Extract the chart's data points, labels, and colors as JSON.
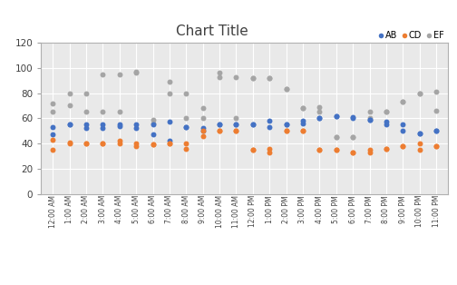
{
  "title": "Chart Title",
  "legend_labels": [
    "AB",
    "CD",
    "EF"
  ],
  "colors": {
    "AB": "#4472C4",
    "CD": "#ED7D31",
    "EF": "#A5A5A5"
  },
  "x_labels": [
    "12:00 AM",
    "1:00 AM",
    "2:00 AM",
    "3:00 AM",
    "4:00 AM",
    "5:00 AM",
    "6:00 AM",
    "7:00 AM",
    "8:00 AM",
    "9:00 AM",
    "10:00 AM",
    "11:00 AM",
    "12:00 PM",
    "1:00 PM",
    "2:00 PM",
    "3:00 PM",
    "4:00 PM",
    "5:00 PM",
    "6:00 PM",
    "7:00 PM",
    "8:00 PM",
    "9:00 PM",
    "10:00 PM",
    "11:00 PM"
  ],
  "AB_data": {
    "0": [
      53,
      47
    ],
    "1": [
      55,
      55
    ],
    "2": [
      55,
      52
    ],
    "3": [
      52,
      55
    ],
    "4": [
      55,
      54
    ],
    "5": [
      55,
      52
    ],
    "6": [
      55,
      47
    ],
    "7": [
      42,
      57
    ],
    "8": [
      53,
      53
    ],
    "9": [
      50,
      52
    ],
    "10": [
      55,
      55
    ],
    "11": [
      55,
      55
    ],
    "12": [
      55,
      55
    ],
    "13": [
      53,
      58
    ],
    "14": [
      55,
      55
    ],
    "15": [
      58,
      56
    ],
    "16": [
      60,
      60
    ],
    "17": [
      62,
      62
    ],
    "18": [
      61,
      60
    ],
    "19": [
      59,
      59
    ],
    "20": [
      57,
      55
    ],
    "21": [
      50,
      55
    ],
    "22": [
      48,
      48
    ],
    "23": [
      50,
      50
    ]
  },
  "CD_data": {
    "0": [
      43,
      35
    ],
    "1": [
      41,
      40
    ],
    "2": [
      40,
      40
    ],
    "3": [
      40,
      40
    ],
    "4": [
      42,
      40
    ],
    "5": [
      40,
      38
    ],
    "6": [
      39,
      39
    ],
    "7": [
      40,
      40
    ],
    "8": [
      36,
      40
    ],
    "9": [
      50,
      46
    ],
    "10": [
      50,
      50
    ],
    "11": [
      50,
      50
    ],
    "12": [
      35,
      35
    ],
    "13": [
      33,
      36
    ],
    "14": [
      50,
      50
    ],
    "15": [
      50,
      50
    ],
    "16": [
      35,
      35
    ],
    "17": [
      35,
      35
    ],
    "18": [
      33,
      33
    ],
    "19": [
      33,
      35
    ],
    "20": [
      36,
      36
    ],
    "21": [
      38,
      38
    ],
    "22": [
      40,
      35
    ],
    "23": [
      38,
      38
    ]
  },
  "EF_data": {
    "0": [
      65,
      72
    ],
    "1": [
      80,
      70
    ],
    "2": [
      80,
      65
    ],
    "3": [
      95,
      65
    ],
    "4": [
      95,
      65
    ],
    "5": [
      96,
      97
    ],
    "6": [
      56,
      59
    ],
    "7": [
      89,
      80
    ],
    "8": [
      80,
      60
    ],
    "9": [
      68,
      60
    ],
    "10": [
      96,
      93
    ],
    "11": [
      93,
      60
    ],
    "12": [
      92,
      92
    ],
    "13": [
      92,
      92
    ],
    "14": [
      83,
      83
    ],
    "15": [
      68,
      68
    ],
    "16": [
      65,
      69
    ],
    "17": [
      45,
      45
    ],
    "18": [
      45,
      45
    ],
    "19": [
      60,
      65
    ],
    "20": [
      65,
      65
    ],
    "21": [
      73,
      73
    ],
    "22": [
      80,
      80
    ],
    "23": [
      66,
      81
    ]
  },
  "ylim": [
    0,
    120
  ],
  "yticks": [
    0,
    20,
    40,
    60,
    80,
    100,
    120
  ],
  "background_color": "#ffffff",
  "plot_bg": "#e9e9e9"
}
